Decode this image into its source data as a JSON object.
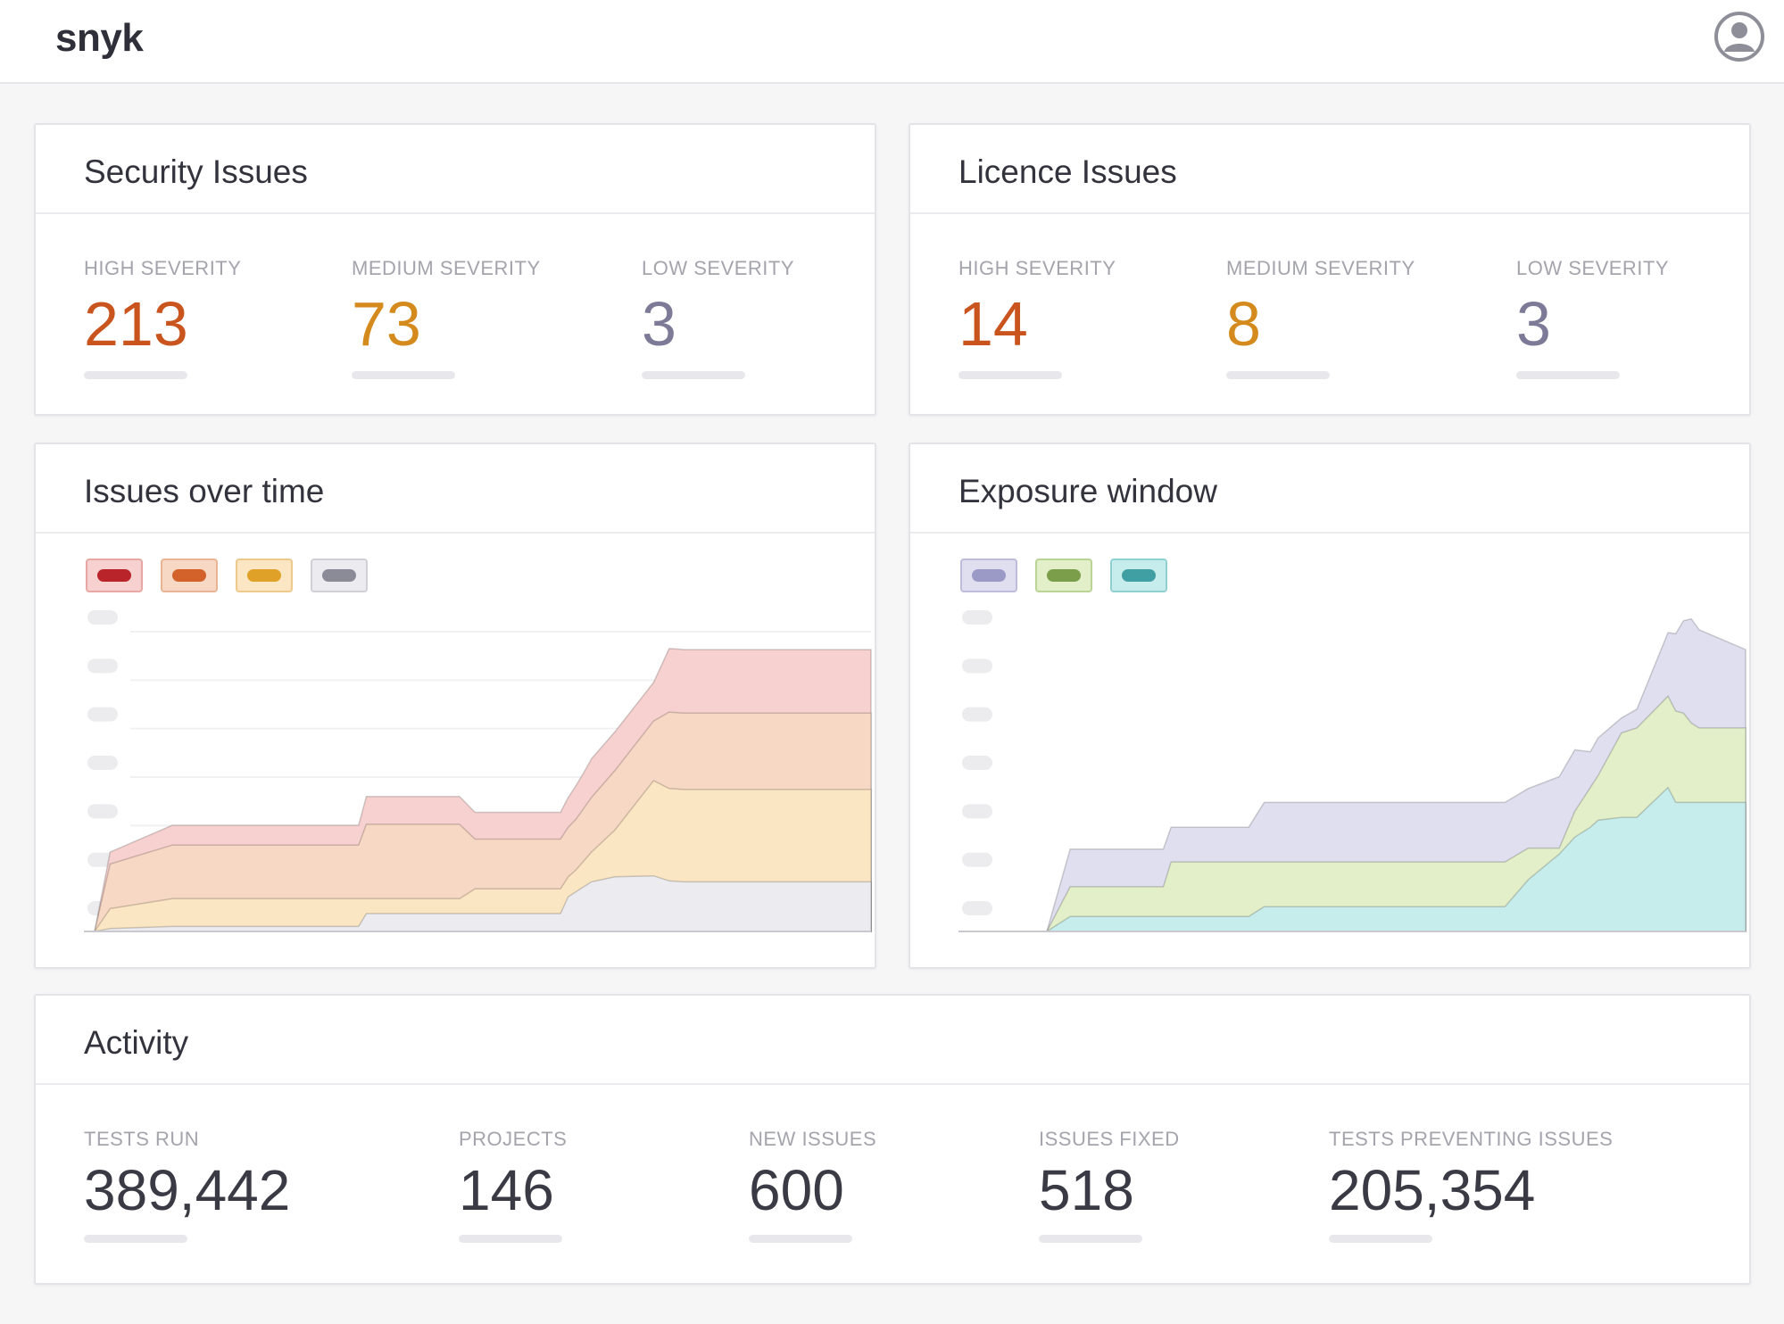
{
  "app": {
    "logo": "snyk",
    "user_icon": "user-avatar-icon"
  },
  "security": {
    "title": "Security Issues",
    "stats": [
      {
        "label": "HIGH SEVERITY",
        "value": "213",
        "color": "#c9541e"
      },
      {
        "label": "MEDIUM  SEVERITY",
        "value": "73",
        "color": "#d48a1c"
      },
      {
        "label": "LOW SEVERITY",
        "value": "3",
        "color": "#7c7a96"
      }
    ]
  },
  "licence": {
    "title": "Licence Issues",
    "stats": [
      {
        "label": "HIGH SEVERITY",
        "value": "14",
        "color": "#c9541e"
      },
      {
        "label": "MEDIUM  SEVERITY",
        "value": "8",
        "color": "#d48a1c"
      },
      {
        "label": "LOW SEVERITY",
        "value": "3",
        "color": "#7c7a96"
      }
    ]
  },
  "issues_over_time": {
    "title": "Issues over time",
    "legend": [
      {
        "fill": "#f7d1cf",
        "border": "#e7a7a4",
        "swatch": "#b8242a"
      },
      {
        "fill": "#f7d8c4",
        "border": "#e8b493",
        "swatch": "#d3612a"
      },
      {
        "fill": "#fbe6c3",
        "border": "#eec98c",
        "swatch": "#e0a128"
      },
      {
        "fill": "#ececf0",
        "border": "#cfcfd6",
        "swatch": "#8b8a97"
      }
    ]
  },
  "exposure_window": {
    "title": "Exposure window",
    "legend": [
      {
        "fill": "#dfdff0",
        "border": "#bdbcda",
        "swatch": "#9b99c6"
      },
      {
        "fill": "#e2efc9",
        "border": "#b9d495",
        "swatch": "#7a9e4a"
      },
      {
        "fill": "#c6ecec",
        "border": "#8fd0d0",
        "swatch": "#3f9fa2"
      }
    ]
  },
  "activity": {
    "title": "Activity",
    "stats": [
      {
        "label": "TESTS RUN",
        "value": "389,442"
      },
      {
        "label": "PROJECTS",
        "value": "146"
      },
      {
        "label": "NEW ISSUES",
        "value": "600"
      },
      {
        "label": "ISSUES FIXED",
        "value": "518"
      },
      {
        "label": "TESTS PREVENTING ISSUES",
        "value": "205,354"
      }
    ]
  },
  "chart_data": [
    {
      "type": "area",
      "stacked": true,
      "grid": true,
      "y_tick_labels_visible": false,
      "x": [
        0,
        2,
        10,
        17,
        18,
        34,
        35,
        42,
        44,
        47,
        49,
        54,
        60,
        61,
        62,
        63,
        64,
        67,
        72,
        74,
        76,
        100
      ],
      "series": [
        {
          "color": "#ececf0",
          "values": [
            0,
            0.3,
            0.5,
            0.5,
            0.5,
            0.5,
            1.8,
            1.8,
            1.8,
            1.8,
            1.8,
            1.8,
            1.8,
            3.5,
            4.0,
            4.5,
            5.0,
            5.5,
            5.6,
            5.1,
            5.0,
            5.0
          ]
        },
        {
          "color": "#fbe6c3",
          "values": [
            0,
            2.0,
            2.8,
            2.8,
            2.8,
            2.8,
            1.5,
            1.5,
            1.5,
            1.5,
            2.5,
            2.5,
            2.5,
            2.0,
            2.2,
            2.6,
            3.0,
            4.7,
            9.6,
            9.3,
            9.3,
            9.3
          ]
        },
        {
          "color": "#f7d8c4",
          "values": [
            0,
            4.5,
            5.4,
            5.4,
            5.4,
            5.4,
            7.5,
            7.5,
            7.5,
            7.5,
            5.0,
            5.0,
            5.0,
            5.0,
            5.1,
            5.3,
            5.5,
            6.0,
            6.0,
            7.7,
            7.7,
            7.7
          ]
        },
        {
          "color": "#f7d1cf",
          "values": [
            0,
            1.2,
            2.0,
            2.0,
            2.0,
            2.0,
            2.8,
            2.8,
            2.8,
            2.8,
            2.7,
            2.7,
            2.7,
            3.0,
            3.4,
            3.6,
            3.9,
            3.9,
            3.9,
            6.4,
            6.4,
            6.4
          ]
        }
      ],
      "areas": [
        {
          "color": "#ececf0",
          "values": [
            0,
            0.3,
            0.5,
            0.5,
            0.5,
            0.5,
            1.8,
            1.8,
            1.8,
            1.8,
            1.8,
            1.8,
            1.8,
            3.5,
            4.0,
            4.5,
            5.0,
            5.5,
            5.6,
            5.1,
            5.0,
            5.0
          ]
        },
        {
          "color": "#fbe6c3",
          "values": [
            0,
            2.3,
            3.3,
            3.3,
            3.3,
            3.3,
            3.3,
            3.3,
            3.3,
            3.3,
            4.3,
            4.3,
            4.3,
            5.5,
            6.2,
            7.1,
            8.0,
            10.2,
            15.2,
            14.4,
            14.3,
            14.3
          ]
        },
        {
          "color": "#f7d8c4",
          "values": [
            0,
            6.8,
            8.7,
            8.7,
            8.7,
            8.7,
            10.8,
            10.8,
            10.8,
            10.8,
            9.3,
            9.3,
            9.3,
            10.5,
            11.3,
            12.4,
            13.5,
            16.2,
            21.2,
            22.1,
            22.0,
            22.0
          ]
        },
        {
          "color": "#f7d1cf",
          "values": [
            0,
            8.0,
            10.7,
            10.7,
            10.7,
            10.7,
            13.6,
            13.6,
            13.6,
            13.6,
            12.0,
            12.0,
            12.0,
            13.5,
            14.7,
            16.0,
            17.4,
            20.1,
            25.1,
            28.5,
            28.4,
            28.4
          ]
        }
      ],
      "ylim": [
        0,
        32
      ]
    },
    {
      "type": "area",
      "stacked": true,
      "grid": false,
      "y_tick_labels_visible": false,
      "x": [
        0,
        10,
        13,
        25,
        26,
        34,
        36,
        38,
        39,
        42,
        43,
        69,
        72,
        76,
        78,
        80,
        81,
        84,
        86,
        90,
        91,
        92,
        93,
        94,
        100
      ],
      "series": [
        {
          "color": "#c6ecec",
          "values": [
            0,
            0,
            1.5,
            1.5,
            1.5,
            1.5,
            1.5,
            2.5,
            2.5,
            2.5,
            2.5,
            2.5,
            5.2,
            7.8,
            9.5,
            10.5,
            11.2,
            11.5,
            11.5,
            14.5,
            13.0,
            13.0,
            13.0,
            13.0,
            13.0
          ]
        },
        {
          "color": "#e2efc9",
          "values": [
            0,
            0,
            3.0,
            3.0,
            5.5,
            5.5,
            5.5,
            4.5,
            4.5,
            4.5,
            4.5,
            4.5,
            3.2,
            0.6,
            2.6,
            4.0,
            4.5,
            8.5,
            9.0,
            9.2,
            9.2,
            9.0,
            8.0,
            7.5,
            7.5
          ]
        },
        {
          "color": "#dfdff0",
          "values": [
            0,
            0,
            3.8,
            3.8,
            3.5,
            3.5,
            3.5,
            6.0,
            6.0,
            6.0,
            6.0,
            6.0,
            6.0,
            7.2,
            6.2,
            3.6,
            3.8,
            1.5,
            1.9,
            6.4,
            7.8,
            9.3,
            10.5,
            9.9,
            7.9
          ]
        }
      ],
      "areas": [
        {
          "color": "#c6ecec",
          "values": [
            0,
            0,
            1.5,
            1.5,
            1.5,
            1.5,
            1.5,
            2.5,
            2.5,
            2.5,
            2.5,
            2.5,
            5.2,
            7.8,
            9.5,
            10.5,
            11.2,
            11.5,
            11.5,
            14.5,
            13.0,
            13.0,
            13.0,
            13.0,
            13.0
          ]
        },
        {
          "color": "#e2efc9",
          "values": [
            0,
            0,
            4.5,
            4.5,
            7.0,
            7.0,
            7.0,
            7.0,
            7.0,
            7.0,
            7.0,
            7.0,
            8.4,
            8.4,
            12.1,
            14.5,
            15.7,
            20.0,
            20.5,
            23.7,
            22.2,
            22.0,
            21.0,
            20.5,
            20.5
          ]
        },
        {
          "color": "#dfdff0",
          "values": [
            0,
            0,
            8.3,
            8.3,
            10.5,
            10.5,
            10.5,
            13.0,
            13.0,
            13.0,
            13.0,
            13.0,
            14.4,
            15.6,
            18.3,
            18.1,
            19.5,
            21.5,
            22.4,
            30.1,
            30.0,
            31.3,
            31.5,
            30.4,
            28.4
          ]
        }
      ],
      "ylim": [
        0,
        32
      ]
    }
  ]
}
